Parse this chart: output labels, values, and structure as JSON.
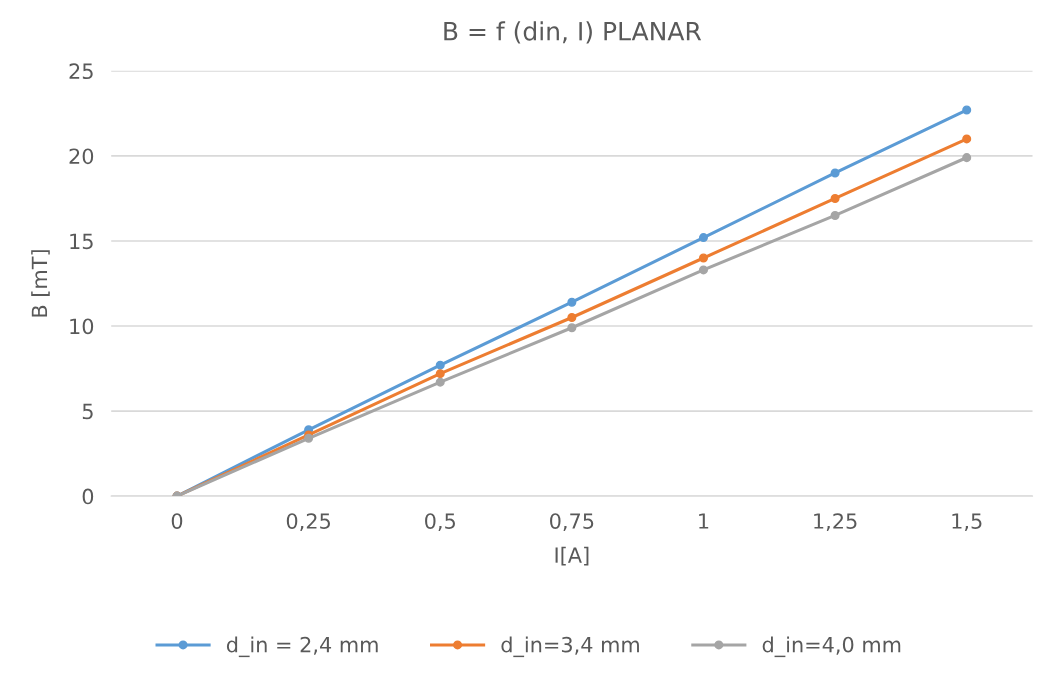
{
  "chart_data": {
    "type": "line",
    "title": "B = f (din, I) PLANAR",
    "xlabel": "I[A]",
    "ylabel": "B [mT]",
    "categories": [
      "0",
      "0,25",
      "0,5",
      "0,75",
      "1",
      "1,25",
      "1,5"
    ],
    "series": [
      {
        "name": "d_in = 2,4 mm",
        "color": "#5b9bd5",
        "values": [
          0,
          3.9,
          7.7,
          11.4,
          15.2,
          19.0,
          22.7
        ]
      },
      {
        "name": "d_in=3,4 mm",
        "color": "#ed7d31",
        "values": [
          0,
          3.6,
          7.2,
          10.5,
          14.0,
          17.5,
          21.0
        ]
      },
      {
        "name": "d_in=4,0 mm",
        "color": "#a5a5a5",
        "values": [
          0,
          3.4,
          6.7,
          9.9,
          13.3,
          16.5,
          19.9
        ]
      }
    ],
    "ylim": [
      0,
      25
    ],
    "yticks": [
      0,
      5,
      10,
      15,
      20,
      25
    ],
    "grid": "y",
    "legend": "bottom",
    "marker": "circle",
    "line_style": "solid"
  }
}
